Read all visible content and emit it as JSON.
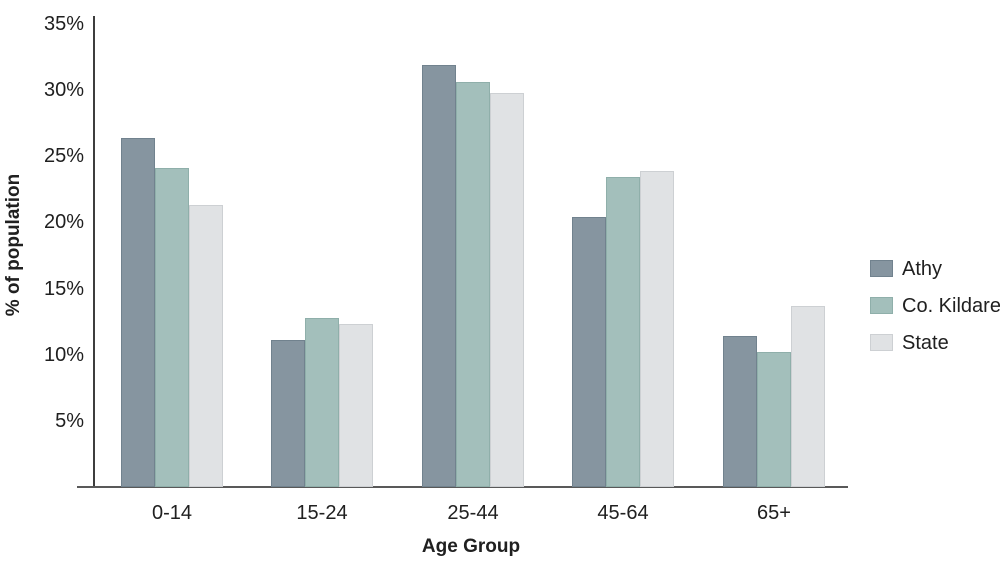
{
  "chart_data": {
    "type": "bar",
    "title": "",
    "categories": [
      "0-14",
      "15-24",
      "25-44",
      "45-64",
      "65+"
    ],
    "series": [
      {
        "name": "Athy",
        "color": "#8695a0",
        "border_color": "#71828e",
        "values": [
          26.4,
          11.1,
          31.9,
          20.4,
          11.4
        ]
      },
      {
        "name": "Co. Kildare",
        "color": "#a3bfbb",
        "border_color": "#8fafaa",
        "values": [
          24.1,
          12.8,
          30.6,
          23.4,
          10.2
        ]
      },
      {
        "name": "State",
        "color": "#e0e2e4",
        "border_color": "#cdd0d3",
        "values": [
          21.3,
          12.3,
          29.8,
          23.9,
          13.7
        ]
      }
    ],
    "xlabel": "Age Group",
    "ylabel": "% of population",
    "ylim": [
      0,
      35
    ],
    "yticks": [
      {
        "value": 35,
        "label": "35%"
      },
      {
        "value": 30,
        "label": "30%"
      },
      {
        "value": 25,
        "label": "25%"
      },
      {
        "value": 20,
        "label": "20%"
      },
      {
        "value": 15,
        "label": "15%"
      },
      {
        "value": 10,
        "label": "10%"
      },
      {
        "value": 5,
        "label": "5%"
      }
    ],
    "grid": false,
    "legend_position": "right",
    "axis_colors": {
      "y_axis_line": "#3d3d3d",
      "x_axis_line": "#595959"
    }
  }
}
